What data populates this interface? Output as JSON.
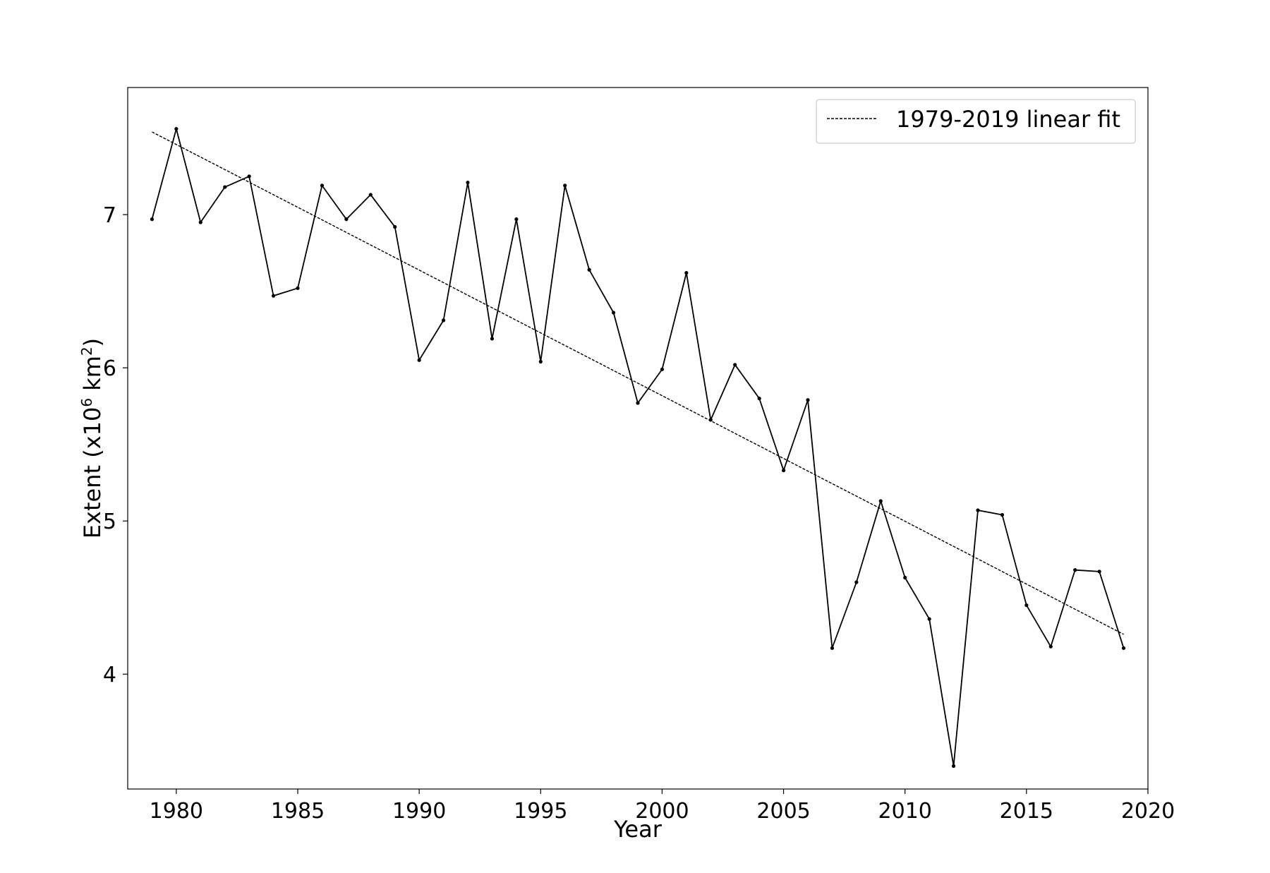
{
  "chart_data": {
    "type": "line",
    "title": "",
    "xlabel": "Year",
    "ylabel": "Extent (x10",
    "ylabel_sup1": "6",
    "ylabel_mid": " km",
    "ylabel_sup2": "2",
    "ylabel_end": ")",
    "xlim": [
      1978,
      2020
    ],
    "ylim": [
      3.25,
      7.83
    ],
    "xticks": [
      1980,
      1985,
      1990,
      1995,
      2000,
      2005,
      2010,
      2015,
      2020
    ],
    "yticks": [
      4,
      5,
      6,
      7
    ],
    "grid": false,
    "legend_position": "top-right",
    "legend": [
      "1979-2019 linear fit"
    ],
    "series": [
      {
        "style": "solid",
        "color": "#000000",
        "markers": true,
        "x": [
          1979,
          1980,
          1981,
          1982,
          1983,
          1984,
          1985,
          1986,
          1987,
          1988,
          1989,
          1990,
          1991,
          1992,
          1993,
          1994,
          1995,
          1996,
          1997,
          1998,
          1999,
          2000,
          2001,
          2002,
          2003,
          2004,
          2005,
          2006,
          2007,
          2008,
          2009,
          2010,
          2011,
          2012,
          2013,
          2014,
          2015,
          2016,
          2017,
          2018,
          2019
        ],
        "y": [
          6.97,
          7.56,
          6.95,
          7.18,
          7.25,
          6.47,
          6.52,
          7.19,
          6.97,
          7.13,
          6.92,
          6.05,
          6.31,
          7.21,
          6.19,
          6.97,
          6.04,
          7.19,
          6.64,
          6.36,
          5.77,
          5.99,
          6.62,
          5.66,
          6.02,
          5.8,
          5.33,
          5.79,
          4.17,
          4.6,
          5.13,
          4.63,
          4.36,
          3.4,
          5.07,
          5.04,
          4.45,
          4.18,
          4.68,
          4.67,
          4.17
        ]
      },
      {
        "name": "1979-2019 linear fit",
        "style": "dashed",
        "color": "#000000",
        "markers": false,
        "x": [
          1979,
          2019
        ],
        "y": [
          7.54,
          4.26
        ]
      }
    ]
  }
}
